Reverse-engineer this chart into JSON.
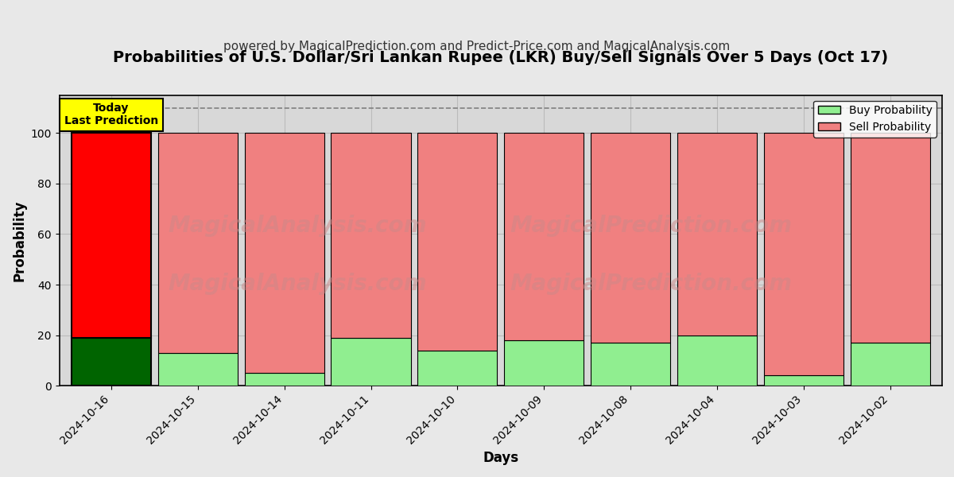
{
  "title": "Probabilities of U.S. Dollar/Sri Lankan Rupee (LKR) Buy/Sell Signals Over 5 Days (Oct 17)",
  "subtitle": "powered by MagicalPrediction.com and Predict-Price.com and MagicalAnalysis.com",
  "xlabel": "Days",
  "ylabel": "Probability",
  "dates": [
    "2024-10-16",
    "2024-10-15",
    "2024-10-14",
    "2024-10-11",
    "2024-10-10",
    "2024-10-09",
    "2024-10-08",
    "2024-10-04",
    "2024-10-03",
    "2024-10-02"
  ],
  "buy_values": [
    19,
    13,
    5,
    19,
    14,
    18,
    17,
    20,
    4,
    17
  ],
  "sell_values": [
    81,
    87,
    95,
    81,
    86,
    82,
    83,
    80,
    96,
    83
  ],
  "today_index": 0,
  "today_buy_color": "#006400",
  "today_sell_color": "#ff0000",
  "other_buy_color": "#90EE90",
  "other_sell_color": "#F08080",
  "today_label_bg": "#ffff00",
  "today_label_text": "Today\nLast Prediction",
  "watermark_text1": "MagicalAnalysis.com",
  "watermark_text2": "MagicalPrediction.com",
  "ylim": [
    0,
    115
  ],
  "yticks": [
    0,
    20,
    40,
    60,
    80,
    100
  ],
  "bar_width": 0.92,
  "title_fontsize": 14,
  "subtitle_fontsize": 11,
  "legend_buy_label": "Buy Probability",
  "legend_sell_label": "Sell Probability",
  "background_color": "#e8e8e8",
  "plot_bg_color": "#d8d8d8",
  "grid_color": "#bbbbbb"
}
